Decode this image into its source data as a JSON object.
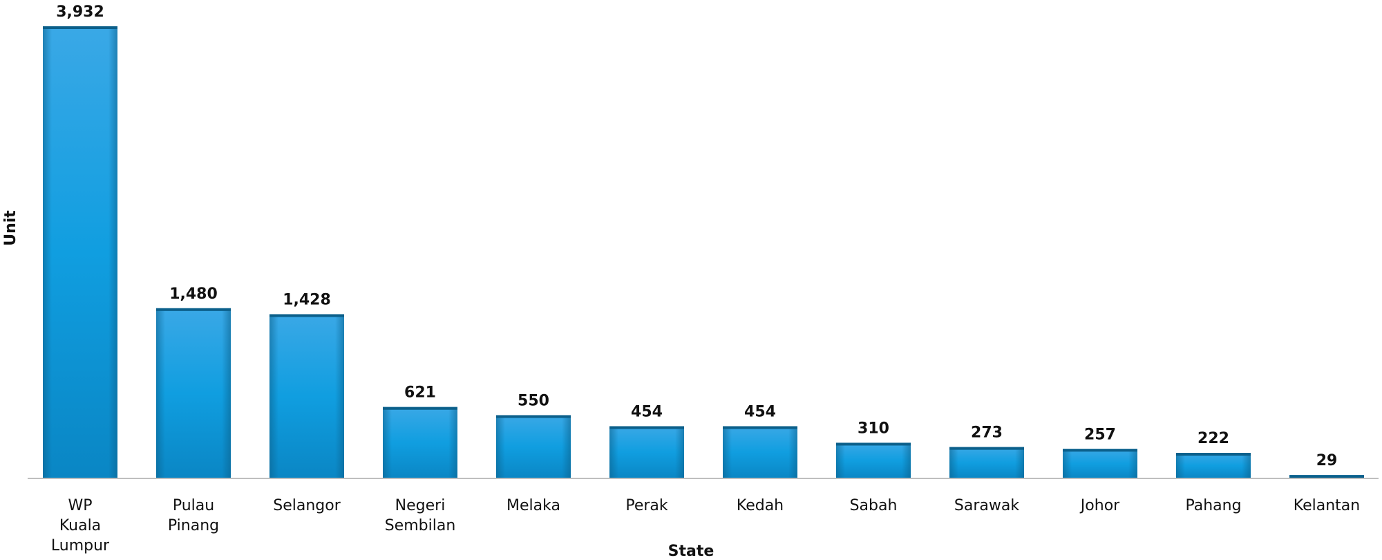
{
  "chart_data": {
    "type": "bar",
    "xlabel": "State",
    "ylabel": "Unit",
    "categories": [
      [
        "WP",
        "Kuala",
        "Lumpur"
      ],
      [
        "Pulau",
        "Pinang"
      ],
      [
        "Selangor"
      ],
      [
        "Negeri",
        "Sembilan"
      ],
      [
        "Melaka"
      ],
      [
        "Perak"
      ],
      [
        "Kedah"
      ],
      [
        "Sabah"
      ],
      [
        "Sarawak"
      ],
      [
        "Johor"
      ],
      [
        "Pahang"
      ],
      [
        "Kelantan"
      ]
    ],
    "values": [
      3932,
      1480,
      1428,
      621,
      550,
      454,
      454,
      310,
      273,
      257,
      222,
      29
    ],
    "value_labels": [
      "3,932",
      "1,480",
      "1,428",
      "621",
      "550",
      "454",
      "454",
      "310",
      "273",
      "257",
      "222",
      "29"
    ],
    "ylim": [
      0,
      3932
    ],
    "grid": false,
    "legend": "none",
    "colors": {
      "bar_top": "#3aa8e6",
      "bar_mid": "#109ee0",
      "bar_bottom": "#0a86c4",
      "bar_edge": "#0b5f8a",
      "axis": "#bfbfbf"
    }
  }
}
